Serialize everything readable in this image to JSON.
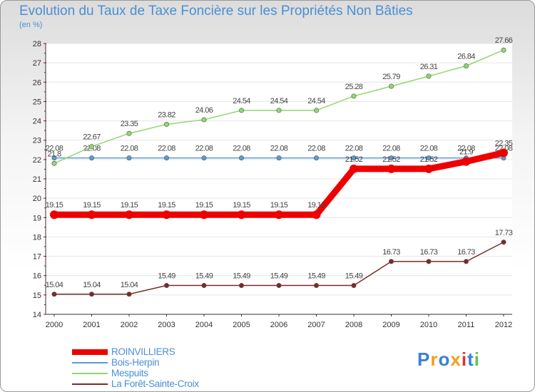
{
  "header": {
    "title": "Evolution du Taux de Taxe Foncière sur les Propriétés Non Bâties",
    "unit": "(en %)"
  },
  "logo": {
    "text": "Proxiti"
  },
  "chart_data": {
    "type": "line",
    "title": "Evolution du Taux de Taxe Foncière sur les Propriétés Non Bâties",
    "ylabel": "(en %)",
    "xlabel": "",
    "ylim": [
      14,
      28
    ],
    "yticks": [
      14,
      15,
      16,
      17,
      18,
      19,
      20,
      21,
      22,
      23,
      24,
      25,
      26,
      27,
      28
    ],
    "grid": "horizontal",
    "categories": [
      "2000",
      "2001",
      "2002",
      "2003",
      "2004",
      "2005",
      "2006",
      "2007",
      "2008",
      "2009",
      "2010",
      "2011",
      "2012"
    ],
    "series": [
      {
        "name": "ROINVILLIERS",
        "color": "#ee0000",
        "values": [
          19.15,
          19.15,
          19.15,
          19.15,
          19.15,
          19.15,
          19.15,
          19.15,
          21.52,
          21.52,
          21.52,
          21.9,
          22.35
        ],
        "labels": [
          "19.15",
          "19.15",
          "19.15",
          "19.15",
          "19.15",
          "19.15",
          "19.15",
          "19.15",
          "21.52",
          "21.52",
          "21.52",
          "21.9",
          "22.35"
        ]
      },
      {
        "name": "Bois-Herpin",
        "color": "#5b9bd5",
        "values": [
          22.08,
          22.08,
          22.08,
          22.08,
          22.08,
          22.08,
          22.08,
          22.08,
          22.08,
          22.08,
          22.08,
          22.08,
          22.08
        ],
        "labels": [
          "22.08",
          "22.08",
          "22.08",
          "22.08",
          "22.08",
          "22.08",
          "22.08",
          "22.08",
          "22.08",
          "22.08",
          "22.08",
          "22.08",
          "22.08"
        ]
      },
      {
        "name": "Mespuits",
        "color": "#8fd86e",
        "values": [
          21.8,
          22.67,
          23.35,
          23.82,
          24.06,
          24.54,
          24.54,
          24.54,
          25.28,
          25.79,
          26.31,
          26.84,
          27.66
        ],
        "labels": [
          "21.8",
          "22.67",
          "23.35",
          "23.82",
          "24.06",
          "24.54",
          "24.54",
          "24.54",
          "25.28",
          "25.79",
          "26.31",
          "26.84",
          "27.66"
        ]
      },
      {
        "name": "La Forêt-Sainte-Croix",
        "color": "#7b2a2a",
        "values": [
          15.04,
          15.04,
          15.04,
          15.49,
          15.49,
          15.49,
          15.49,
          15.49,
          15.49,
          16.73,
          16.73,
          16.73,
          17.73
        ],
        "labels": [
          "15.04",
          "15.04",
          "15.04",
          "15.49",
          "15.49",
          "15.49",
          "15.49",
          "15.49",
          "15.49",
          "16.73",
          "16.73",
          "16.73",
          "17.73"
        ]
      }
    ]
  }
}
